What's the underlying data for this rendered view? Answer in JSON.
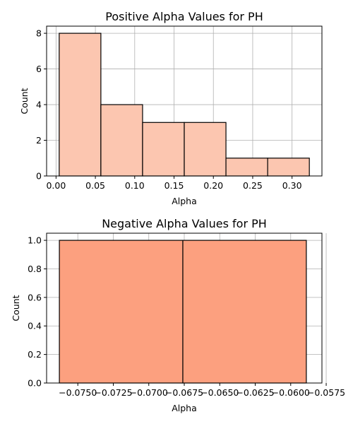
{
  "colors": {
    "bar_positive": "#fcc6b0",
    "bar_negative": "#fca07f",
    "edge": "#000000",
    "grid": "#b0b0b0"
  },
  "chart_data": [
    {
      "type": "bar",
      "title": "Positive Alpha Values for PH",
      "xlabel": "Alpha",
      "ylabel": "Count",
      "grid": true,
      "bins": [
        {
          "x0": 0.004,
          "x1": 0.057,
          "count": 8
        },
        {
          "x0": 0.057,
          "x1": 0.11,
          "count": 4
        },
        {
          "x0": 0.11,
          "x1": 0.163,
          "count": 3
        },
        {
          "x0": 0.163,
          "x1": 0.216,
          "count": 3
        },
        {
          "x0": 0.216,
          "x1": 0.269,
          "count": 1
        },
        {
          "x0": 0.269,
          "x1": 0.322,
          "count": 1
        }
      ],
      "xlim": [
        -0.012,
        0.338
      ],
      "ylim": [
        0,
        8.4
      ],
      "xticks": [
        0.0,
        0.05,
        0.1,
        0.15,
        0.2,
        0.25,
        0.3
      ],
      "xtick_labels": [
        "0.00",
        "0.05",
        "0.10",
        "0.15",
        "0.20",
        "0.25",
        "0.30"
      ],
      "yticks": [
        0,
        2,
        4,
        6,
        8
      ],
      "ytick_labels": [
        "0",
        "2",
        "4",
        "6",
        "8"
      ]
    },
    {
      "type": "bar",
      "title": "Negative Alpha Values for PH",
      "xlabel": "Alpha",
      "ylabel": "Count",
      "grid": true,
      "bins": [
        {
          "x0": -0.0763,
          "x1": -0.0676,
          "count": 1
        },
        {
          "x0": -0.0676,
          "x1": -0.0589,
          "count": 1
        }
      ],
      "xlim": [
        -0.0772,
        -0.0578
      ],
      "ylim": [
        0,
        1.05
      ],
      "xticks": [
        -0.075,
        -0.0725,
        -0.07,
        -0.0675,
        -0.065,
        -0.0625,
        -0.06,
        -0.0575
      ],
      "xtick_labels": [
        "−0.0750",
        "−0.0725",
        "−0.0700",
        "−0.0675",
        "−0.0650",
        "−0.0625",
        "−0.0600",
        "−0.0575"
      ],
      "yticks": [
        0.0,
        0.2,
        0.4,
        0.6,
        0.8,
        1.0
      ],
      "ytick_labels": [
        "0.0",
        "0.2",
        "0.4",
        "0.6",
        "0.8",
        "1.0"
      ]
    }
  ]
}
